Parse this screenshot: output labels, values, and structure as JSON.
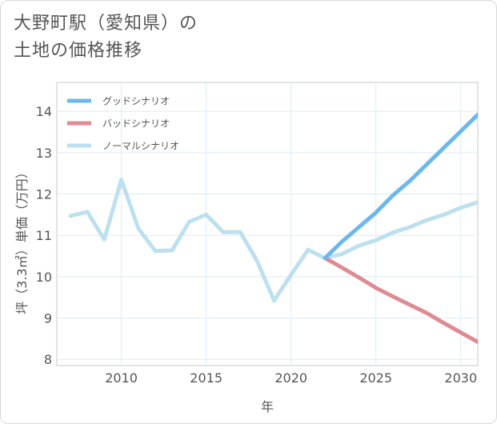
{
  "title_lines": [
    "大野町駅（愛知県）の",
    "土地の価格推移"
  ],
  "chart_data": {
    "type": "line",
    "xlabel": "年",
    "ylabel": "坪（3.3㎡）単価（万円）",
    "xlim": [
      2006.2,
      2031
    ],
    "ylim": [
      7.85,
      14.7
    ],
    "x_ticks": [
      2010,
      2015,
      2020,
      2025,
      2030
    ],
    "y_ticks": [
      8,
      9,
      10,
      11,
      12,
      13,
      14
    ],
    "grid": true,
    "legend_position": "top-left",
    "series": [
      {
        "name": "グッドシナリオ",
        "color": "#6cb8ec",
        "x": [
          2022,
          2023,
          2024,
          2025,
          2026,
          2027,
          2028,
          2029,
          2030,
          2031
        ],
        "y": [
          10.45,
          10.85,
          11.2,
          11.55,
          11.97,
          12.32,
          12.72,
          13.12,
          13.52,
          13.92
        ]
      },
      {
        "name": "バッドシナリオ",
        "color": "#de8b92",
        "x": [
          2022,
          2023,
          2024,
          2025,
          2026,
          2027,
          2028,
          2029,
          2030,
          2031
        ],
        "y": [
          10.45,
          10.22,
          9.98,
          9.73,
          9.52,
          9.32,
          9.12,
          8.88,
          8.65,
          8.42
        ]
      },
      {
        "name": "ノーマルシナリオ",
        "color": "#bde0ee",
        "x": [
          2007,
          2008,
          2009,
          2010,
          2011,
          2012,
          2013,
          2014,
          2015,
          2016,
          2017,
          2018,
          2019,
          2020,
          2021,
          2022,
          2023,
          2024,
          2025,
          2026,
          2027,
          2028,
          2029,
          2030,
          2031
        ],
        "y": [
          11.47,
          11.57,
          10.9,
          12.35,
          11.17,
          10.62,
          10.64,
          11.33,
          11.5,
          11.08,
          11.08,
          10.38,
          9.42,
          10.05,
          10.65,
          10.45,
          10.55,
          10.75,
          10.88,
          11.07,
          11.2,
          11.37,
          11.5,
          11.67,
          11.8
        ]
      }
    ]
  }
}
